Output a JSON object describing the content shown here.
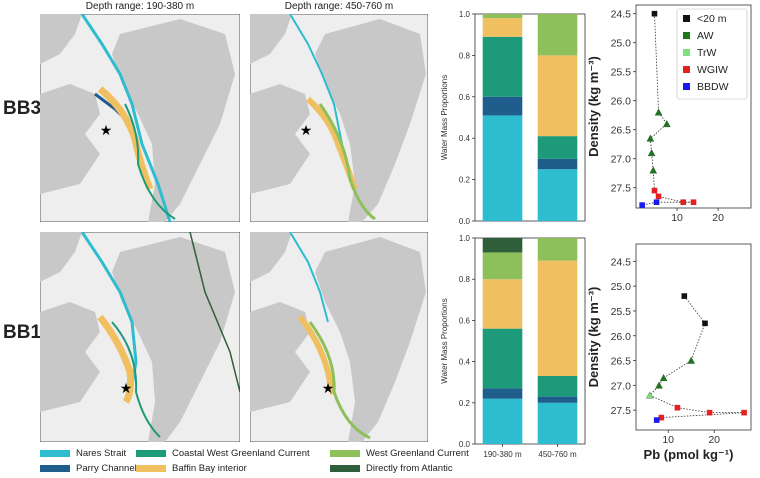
{
  "maps": {
    "col_titles": [
      "Depth range: 190-380 m",
      "Depth range: 450-760 m"
    ],
    "rows": [
      "BB3",
      "BB1"
    ]
  },
  "legend": {
    "items": [
      {
        "label": "Nares Strait",
        "color": "#2ebcd0"
      },
      {
        "label": "Parry Channel",
        "color": "#1f5d8c"
      },
      {
        "label": "Coastal West Greenland Current",
        "color": "#1c9a7a"
      },
      {
        "label": "Baffin Bay interior",
        "color": "#f0c060"
      },
      {
        "label": "West Greenland Current",
        "color": "#8dc05a"
      },
      {
        "label": "Directly from Atlantic",
        "color": "#2f5e3a"
      }
    ]
  },
  "chart_data": [
    {
      "type": "bar",
      "name": "BB3 water mass proportions",
      "categories": [
        "190-380 m",
        "450-760 m"
      ],
      "ylabel": "Water Mass Proportions",
      "ylim": [
        0,
        1.0
      ],
      "yticks": [
        "0.0",
        "0.2",
        "0.4",
        "0.6",
        "0.8",
        "1.0"
      ],
      "stacked": true,
      "series": [
        {
          "name": "Nares Strait",
          "color": "#2ebcd0",
          "values": [
            0.51,
            0.25
          ]
        },
        {
          "name": "Parry Channel",
          "color": "#1f5d8c",
          "values": [
            0.09,
            0.05
          ]
        },
        {
          "name": "Coastal West Greenland Current",
          "color": "#1c9a7a",
          "values": [
            0.29,
            0.11
          ]
        },
        {
          "name": "Baffin Bay interior",
          "color": "#f0c060",
          "values": [
            0.09,
            0.39
          ]
        },
        {
          "name": "West Greenland Current",
          "color": "#8dc05a",
          "values": [
            0.02,
            0.2
          ]
        },
        {
          "name": "Directly from Atlantic",
          "color": "#2f5e3a",
          "values": [
            0.0,
            0.0
          ]
        }
      ]
    },
    {
      "type": "bar",
      "name": "BB1 water mass proportions",
      "categories": [
        "190-380 m",
        "450-760 m"
      ],
      "xticklabels": [
        "190-380 m",
        "450-760 m"
      ],
      "ylabel": "Water Mass Proportions",
      "ylim": [
        0,
        1.0
      ],
      "yticks": [
        "0.0",
        "0.2",
        "0.4",
        "0.6",
        "0.8",
        "1.0"
      ],
      "stacked": true,
      "series": [
        {
          "name": "Nares Strait",
          "color": "#2ebcd0",
          "values": [
            0.22,
            0.2
          ]
        },
        {
          "name": "Parry Channel",
          "color": "#1f5d8c",
          "values": [
            0.05,
            0.03
          ]
        },
        {
          "name": "Coastal West Greenland Current",
          "color": "#1c9a7a",
          "values": [
            0.29,
            0.1
          ]
        },
        {
          "name": "Baffin Bay interior",
          "color": "#f0c060",
          "values": [
            0.24,
            0.56
          ]
        },
        {
          "name": "West Greenland Current",
          "color": "#8dc05a",
          "values": [
            0.13,
            0.11
          ]
        },
        {
          "name": "Directly from Atlantic",
          "color": "#2f5e3a",
          "values": [
            0.07,
            0.0
          ]
        }
      ]
    },
    {
      "type": "scatter",
      "name": "BB3 Pb vs density",
      "ylabel": "Density (kg m⁻³)",
      "xlim": [
        0,
        28
      ],
      "ylim": [
        27.85,
        24.35
      ],
      "xticks": [
        10,
        20
      ],
      "yticks": [
        "24.5",
        "25.0",
        "25.5",
        "26.0",
        "26.5",
        "27.0",
        "27.5"
      ],
      "inverted_y": true,
      "legend_position": "top-right",
      "legend": [
        {
          "label": "<20 m",
          "color": "#111111"
        },
        {
          "label": "AW",
          "color": "#1a7a1a"
        },
        {
          "label": "TrW",
          "color": "#7ee07e"
        },
        {
          "label": "WGIW",
          "color": "#e52020"
        },
        {
          "label": "BBDW",
          "color": "#1a1aee"
        }
      ],
      "points": [
        {
          "x": 4.5,
          "y": 24.5,
          "group": "<20 m"
        },
        {
          "x": 5.5,
          "y": 26.2,
          "group": "AW"
        },
        {
          "x": 7.5,
          "y": 26.4,
          "group": "AW"
        },
        {
          "x": 3.5,
          "y": 26.65,
          "group": "AW"
        },
        {
          "x": 3.8,
          "y": 26.9,
          "group": "AW"
        },
        {
          "x": 4.2,
          "y": 27.2,
          "group": "AW"
        },
        {
          "x": 4.5,
          "y": 27.55,
          "group": "WGIW"
        },
        {
          "x": 5.5,
          "y": 27.65,
          "group": "WGIW"
        },
        {
          "x": 11.5,
          "y": 27.75,
          "group": "WGIW"
        },
        {
          "x": 14,
          "y": 27.75,
          "group": "WGIW"
        },
        {
          "x": 5,
          "y": 27.75,
          "group": "BBDW"
        },
        {
          "x": 1.5,
          "y": 27.8,
          "group": "BBDW"
        }
      ]
    },
    {
      "type": "scatter",
      "name": "BB1 Pb vs density",
      "xlabel": "Pb (pmol kg⁻¹)",
      "ylabel": "Density (kg m⁻³)",
      "xlim": [
        3,
        28
      ],
      "ylim": [
        27.9,
        24.15
      ],
      "xticks": [
        10,
        20
      ],
      "yticks": [
        "24.5",
        "25.0",
        "25.5",
        "26.0",
        "26.5",
        "27.0",
        "27.5"
      ],
      "inverted_y": true,
      "points": [
        {
          "x": 13.5,
          "y": 25.2,
          "group": "<20 m"
        },
        {
          "x": 18,
          "y": 25.75,
          "group": "<20 m"
        },
        {
          "x": 15,
          "y": 26.5,
          "group": "AW"
        },
        {
          "x": 9,
          "y": 26.85,
          "group": "AW"
        },
        {
          "x": 8,
          "y": 27.0,
          "group": "AW"
        },
        {
          "x": 6,
          "y": 27.2,
          "group": "TrW"
        },
        {
          "x": 12,
          "y": 27.45,
          "group": "WGIW"
        },
        {
          "x": 19,
          "y": 27.55,
          "group": "WGIW"
        },
        {
          "x": 26.5,
          "y": 27.55,
          "group": "WGIW"
        },
        {
          "x": 8.5,
          "y": 27.65,
          "group": "WGIW"
        },
        {
          "x": 7.5,
          "y": 27.7,
          "group": "BBDW"
        }
      ]
    }
  ]
}
